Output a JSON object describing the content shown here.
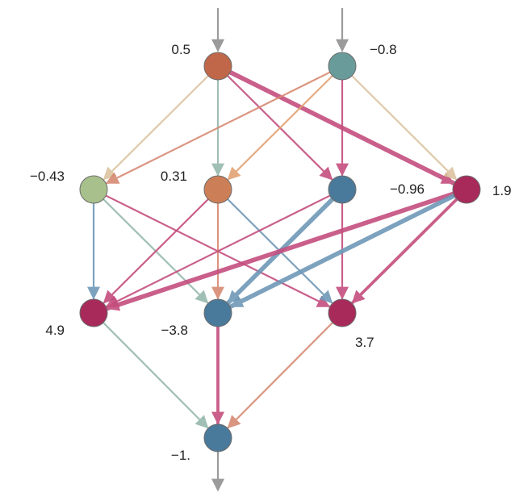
{
  "network": {
    "colors": {
      "edge_tan": "#dcc4a0",
      "edge_teal": "#96b9ad",
      "edge_pink": "#c44e7e",
      "edge_blue": "#6f98b8",
      "edge_orange": "#e2a274",
      "edge_salmon": "#d78a73",
      "io_arrow": "#9b9b9b",
      "node_stroke": "#6b6b6b"
    },
    "nodes": [
      {
        "id": "in1",
        "label": "0.5",
        "value": 0.5,
        "color": "#c0674a"
      },
      {
        "id": "in2",
        "label": "−0.8",
        "value": -0.8,
        "color": "#6a9b9b"
      },
      {
        "id": "h1a",
        "label": "−0.43",
        "value": -0.43,
        "color": "#a8c08b"
      },
      {
        "id": "h1b",
        "label": "0.31",
        "value": 0.31,
        "color": "#cc7f57"
      },
      {
        "id": "h1c",
        "label": "−0.96",
        "value": -0.96,
        "color": "#4a7a9b"
      },
      {
        "id": "h1d",
        "label": "1.9",
        "value": 1.9,
        "color": "#a82a5b"
      },
      {
        "id": "h2a",
        "label": "4.9",
        "value": 4.9,
        "color": "#a82a5b"
      },
      {
        "id": "h2b",
        "label": "−3.8",
        "value": -3.8,
        "color": "#4a7a9b"
      },
      {
        "id": "h2c",
        "label": "3.7",
        "value": 3.7,
        "color": "#a82a5b"
      },
      {
        "id": "out",
        "label": "−1.",
        "value": -1.0,
        "color": "#4a7a9b"
      }
    ],
    "edges": [
      {
        "from": "in1",
        "to": "h1a",
        "color": "edge_tan",
        "weight": 1
      },
      {
        "from": "in1",
        "to": "h1b",
        "color": "edge_teal",
        "weight": 1
      },
      {
        "from": "in1",
        "to": "h1c",
        "color": "edge_pink",
        "weight": 1
      },
      {
        "from": "in1",
        "to": "h1d",
        "color": "edge_pink",
        "weight": 3
      },
      {
        "from": "in2",
        "to": "h1a",
        "color": "edge_salmon",
        "weight": 1
      },
      {
        "from": "in2",
        "to": "h1b",
        "color": "edge_orange",
        "weight": 1
      },
      {
        "from": "in2",
        "to": "h1c",
        "color": "edge_pink",
        "weight": 1
      },
      {
        "from": "in2",
        "to": "h1d",
        "color": "edge_tan",
        "weight": 1
      },
      {
        "from": "h1a",
        "to": "h2a",
        "color": "edge_blue",
        "weight": 1
      },
      {
        "from": "h1a",
        "to": "h2b",
        "color": "edge_teal",
        "weight": 1
      },
      {
        "from": "h1a",
        "to": "h2c",
        "color": "edge_pink",
        "weight": 1
      },
      {
        "from": "h1b",
        "to": "h2a",
        "color": "edge_pink",
        "weight": 1
      },
      {
        "from": "h1b",
        "to": "h2b",
        "color": "edge_salmon",
        "weight": 1
      },
      {
        "from": "h1b",
        "to": "h2c",
        "color": "edge_blue",
        "weight": 1
      },
      {
        "from": "h1c",
        "to": "h2a",
        "color": "edge_pink",
        "weight": 1
      },
      {
        "from": "h1c",
        "to": "h2b",
        "color": "edge_blue",
        "weight": 3
      },
      {
        "from": "h1c",
        "to": "h2c",
        "color": "edge_pink",
        "weight": 1
      },
      {
        "from": "h1d",
        "to": "h2a",
        "color": "edge_pink",
        "weight": 3
      },
      {
        "from": "h1d",
        "to": "h2b",
        "color": "edge_blue",
        "weight": 3
      },
      {
        "from": "h1d",
        "to": "h2c",
        "color": "edge_pink",
        "weight": 2
      },
      {
        "from": "h2a",
        "to": "out",
        "color": "edge_teal",
        "weight": 1
      },
      {
        "from": "h2b",
        "to": "out",
        "color": "edge_pink",
        "weight": 2
      },
      {
        "from": "h2c",
        "to": "out",
        "color": "edge_salmon",
        "weight": 1
      }
    ]
  }
}
